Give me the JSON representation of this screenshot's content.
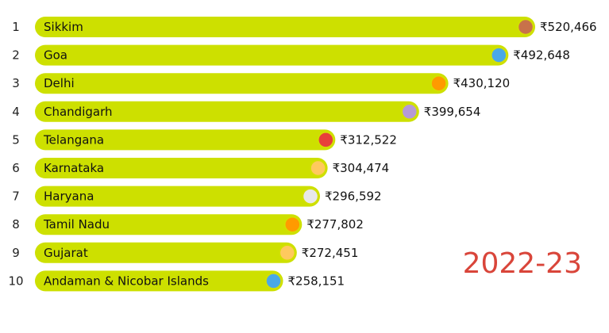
{
  "chart_data": {
    "type": "bar",
    "orientation": "horizontal",
    "period": "2022-23",
    "currency_symbol": "₹",
    "bar_color": "#cde000",
    "period_color": "#d9453a",
    "ranks": [
      "1",
      "2",
      "3",
      "4",
      "5",
      "6",
      "7",
      "8",
      "9",
      "10"
    ],
    "categories": [
      "Sikkim",
      "Goa",
      "Delhi",
      "Chandigarh",
      "Telangana",
      "Karnataka",
      "Haryana",
      "Tamil Nadu",
      "Gujarat",
      "Andaman & Nicobar Islands"
    ],
    "values": [
      520466,
      492648,
      430120,
      399654,
      312522,
      304474,
      296592,
      277802,
      272451,
      258151
    ],
    "value_labels": [
      "₹520,466",
      "₹492,648",
      "₹430,120",
      "₹399,654",
      "₹312,522",
      "₹304,474",
      "₹296,592",
      "₹277,802",
      "₹272,451",
      "₹258,151"
    ],
    "marker_colors": [
      "#c8724a",
      "#4aa8e8",
      "#ff9a00",
      "#b59ad6",
      "#e8403a",
      "#ffc95e",
      "#e8e8e8",
      "#ff9a00",
      "#ffc95e",
      "#4aa8e8"
    ]
  }
}
